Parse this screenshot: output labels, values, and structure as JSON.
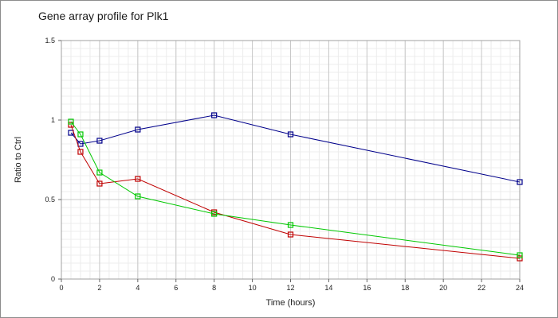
{
  "chart_data": {
    "type": "line",
    "title": "Gene array profile for Plk1",
    "xlabel": "Time (hours)",
    "ylabel": "Ratio to Ctrl",
    "xlim": [
      0,
      24
    ],
    "ylim": [
      0,
      1.5
    ],
    "xticks": [
      0,
      2,
      4,
      6,
      8,
      10,
      12,
      14,
      16,
      18,
      20,
      22,
      24
    ],
    "yticks": [
      0,
      0.5,
      1,
      1.5
    ],
    "ytick_labels": [
      "0",
      "0.5",
      "1",
      "1.5"
    ],
    "grid": true,
    "legend": "none",
    "marker": "square",
    "series": [
      {
        "color": "#00008b",
        "points": [
          [
            0.5,
            0.92
          ],
          [
            1,
            0.85
          ],
          [
            2,
            0.87
          ],
          [
            4,
            0.94
          ],
          [
            8,
            1.03
          ],
          [
            12,
            0.91
          ],
          [
            24,
            0.61
          ]
        ]
      },
      {
        "color": "#c00000",
        "points": [
          [
            0.5,
            0.97
          ],
          [
            1,
            0.8
          ],
          [
            2,
            0.6
          ],
          [
            4,
            0.63
          ],
          [
            8,
            0.42
          ],
          [
            12,
            0.28
          ],
          [
            24,
            0.13
          ]
        ]
      },
      {
        "color": "#00c800",
        "points": [
          [
            0.5,
            0.99
          ],
          [
            1,
            0.91
          ],
          [
            2,
            0.67
          ],
          [
            4,
            0.52
          ],
          [
            8,
            0.41
          ],
          [
            12,
            0.34
          ],
          [
            24,
            0.15
          ]
        ]
      }
    ]
  }
}
